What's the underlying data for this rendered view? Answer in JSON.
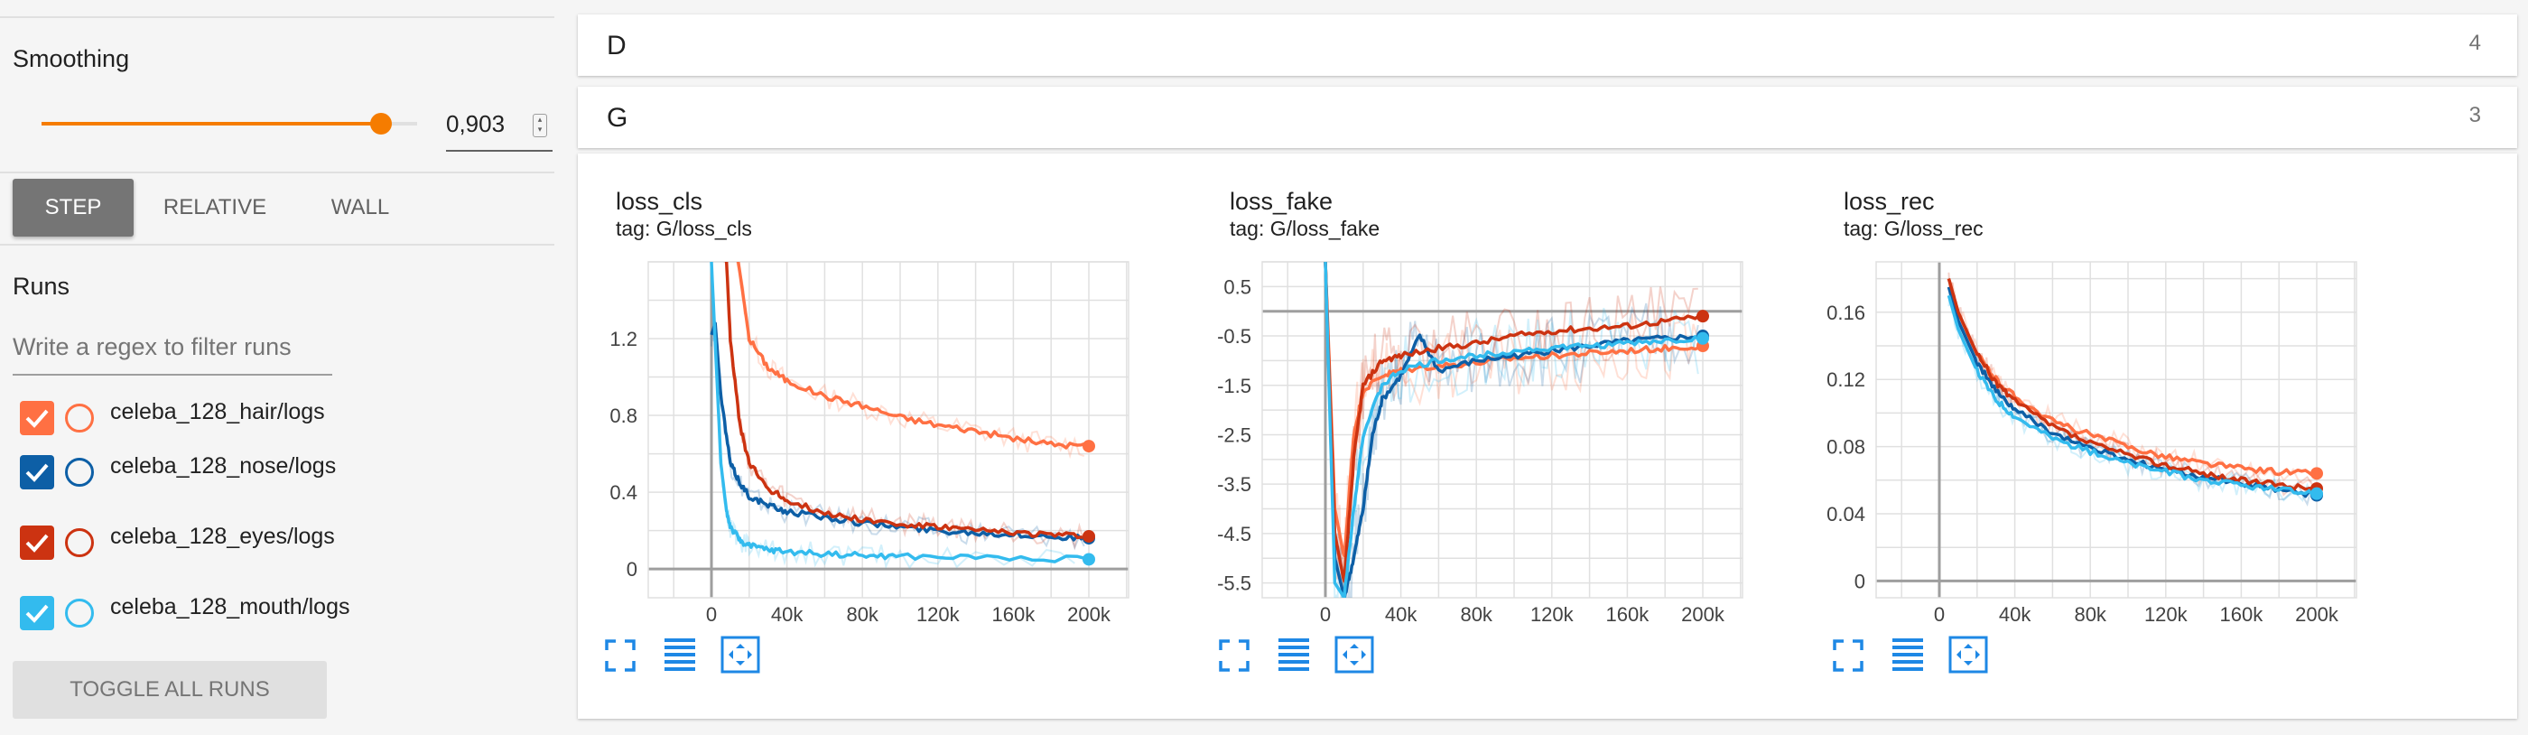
{
  "sidebar": {
    "smoothing_label": "Smoothing",
    "smoothing_value": "0,903",
    "smoothing_fraction": 0.903,
    "xaxis_options": [
      "STEP",
      "RELATIVE",
      "WALL"
    ],
    "xaxis_selected": "STEP",
    "runs_label": "Runs",
    "regex_placeholder": "Write a regex to filter runs",
    "toggle_label": "TOGGLE ALL RUNS",
    "runs": [
      {
        "name": "celeba_128_hair/logs",
        "color": "#ff7043",
        "checked": true
      },
      {
        "name": "celeba_128_nose/logs",
        "color": "#0d5fa6",
        "checked": true
      },
      {
        "name": "celeba_128_eyes/logs",
        "color": "#cc3311",
        "checked": true
      },
      {
        "name": "celeba_128_mouth/logs",
        "color": "#33bbee",
        "checked": true
      }
    ]
  },
  "groups": [
    {
      "name": "D",
      "count": "4"
    },
    {
      "name": "G",
      "count": "3"
    }
  ],
  "icons": [
    "fullscreen-icon",
    "data-list-icon",
    "fit-domain-icon",
    "check-icon",
    "spinner-icon"
  ],
  "chart_data": [
    {
      "type": "line",
      "title": "loss_cls",
      "subtitle": "tag: G/loss_cls",
      "xlim": [
        0,
        200000
      ],
      "ylim": [
        -0.15,
        1.6
      ],
      "xticks": [
        0,
        40000,
        80000,
        120000,
        160000,
        200000
      ],
      "xtick_labels": [
        "0",
        "40k",
        "80k",
        "120k",
        "160k",
        "200k"
      ],
      "yticks": [
        0,
        0.4,
        0.8,
        1.2
      ],
      "ytick_labels": [
        "0",
        "0.4",
        "0.8",
        "1.2"
      ],
      "grid": true,
      "series": [
        {
          "run": "celeba_128_hair/logs",
          "color": "#ff7043",
          "x": [
            0,
            15000,
            20000,
            30000,
            40000,
            60000,
            80000,
            100000,
            120000,
            140000,
            160000,
            180000,
            200000
          ],
          "y": [
            2.5,
            1.55,
            1.2,
            1.05,
            0.98,
            0.9,
            0.85,
            0.79,
            0.75,
            0.72,
            0.68,
            0.65,
            0.64
          ]
        },
        {
          "run": "celeba_128_nose/logs",
          "color": "#0d5fa6",
          "x": [
            0,
            2000,
            5000,
            10000,
            15000,
            20000,
            30000,
            40000,
            60000,
            80000,
            100000,
            120000,
            140000,
            160000,
            180000,
            200000
          ],
          "y": [
            1.22,
            1.28,
            0.9,
            0.55,
            0.45,
            0.38,
            0.33,
            0.3,
            0.27,
            0.24,
            0.22,
            0.2,
            0.19,
            0.18,
            0.17,
            0.16
          ]
        },
        {
          "run": "celeba_128_eyes/logs",
          "color": "#cc3311",
          "x": [
            0,
            8000,
            10000,
            15000,
            20000,
            30000,
            40000,
            60000,
            80000,
            100000,
            120000,
            140000,
            160000,
            180000,
            200000
          ],
          "y": [
            2.0,
            1.6,
            1.2,
            0.75,
            0.55,
            0.42,
            0.36,
            0.29,
            0.26,
            0.23,
            0.22,
            0.2,
            0.19,
            0.18,
            0.17
          ]
        },
        {
          "run": "celeba_128_mouth/logs",
          "color": "#33bbee",
          "x": [
            0,
            5000,
            8000,
            10000,
            15000,
            20000,
            30000,
            40000,
            60000,
            80000,
            100000,
            140000,
            200000
          ],
          "y": [
            1.6,
            0.55,
            0.3,
            0.22,
            0.15,
            0.12,
            0.1,
            0.09,
            0.08,
            0.07,
            0.065,
            0.06,
            0.05
          ]
        }
      ]
    },
    {
      "type": "line",
      "title": "loss_fake",
      "subtitle": "tag: G/loss_fake",
      "xlim": [
        0,
        200000
      ],
      "ylim": [
        -5.8,
        1.0
      ],
      "xticks": [
        0,
        40000,
        80000,
        120000,
        160000,
        200000
      ],
      "xtick_labels": [
        "0",
        "40k",
        "80k",
        "120k",
        "160k",
        "200k"
      ],
      "yticks": [
        0.5,
        -0.5,
        -1.5,
        -2.5,
        -3.5,
        -4.5,
        -5.5
      ],
      "ytick_labels": [
        "0.5",
        "-0.5",
        "-1.5",
        "-2.5",
        "-3.5",
        "-4.5",
        "-5.5"
      ],
      "grid": true,
      "series": [
        {
          "run": "celeba_128_hair/logs",
          "color": "#ff7043",
          "x": [
            0,
            5000,
            10000,
            15000,
            20000,
            30000,
            40000,
            60000,
            80000,
            100000,
            120000,
            140000,
            160000,
            180000,
            200000
          ],
          "y": [
            1.0,
            -4.0,
            -5.0,
            -2.5,
            -1.6,
            -1.3,
            -1.2,
            -1.1,
            -1.05,
            -0.95,
            -0.9,
            -0.85,
            -0.8,
            -0.75,
            -0.7
          ]
        },
        {
          "run": "celeba_128_nose/logs",
          "color": "#0d5fa6",
          "x": [
            0,
            5000,
            10000,
            15000,
            20000,
            25000,
            30000,
            40000,
            50000,
            60000,
            80000,
            100000,
            120000,
            140000,
            160000,
            180000,
            200000
          ],
          "y": [
            1.0,
            -5.0,
            -5.8,
            -5.0,
            -4.0,
            -2.5,
            -1.8,
            -1.3,
            -0.5,
            -1.2,
            -1.0,
            -0.9,
            -0.8,
            -0.7,
            -0.6,
            -0.55,
            -0.5
          ]
        },
        {
          "run": "celeba_128_eyes/logs",
          "color": "#cc3311",
          "x": [
            0,
            5000,
            10000,
            15000,
            20000,
            30000,
            40000,
            60000,
            80000,
            100000,
            120000,
            140000,
            160000,
            180000,
            200000
          ],
          "y": [
            1.0,
            -4.5,
            -5.5,
            -3.0,
            -1.5,
            -1.0,
            -0.9,
            -0.75,
            -0.65,
            -0.5,
            -0.4,
            -0.35,
            -0.3,
            -0.2,
            -0.1
          ]
        },
        {
          "run": "celeba_128_mouth/logs",
          "color": "#33bbee",
          "x": [
            0,
            5000,
            10000,
            15000,
            20000,
            30000,
            40000,
            60000,
            80000,
            100000,
            120000,
            140000,
            160000,
            180000,
            200000
          ],
          "y": [
            1.0,
            -5.5,
            -5.8,
            -4.0,
            -2.5,
            -1.5,
            -1.2,
            -1.0,
            -0.9,
            -0.8,
            -0.75,
            -0.7,
            -0.65,
            -0.6,
            -0.55
          ]
        }
      ]
    },
    {
      "type": "line",
      "title": "loss_rec",
      "subtitle": "tag: G/loss_rec",
      "xlim": [
        0,
        200000
      ],
      "ylim": [
        -0.01,
        0.19
      ],
      "xticks": [
        0,
        40000,
        80000,
        120000,
        160000,
        200000
      ],
      "xtick_labels": [
        "0",
        "40k",
        "80k",
        "120k",
        "160k",
        "200k"
      ],
      "yticks": [
        0,
        0.04,
        0.08,
        0.12,
        0.16
      ],
      "ytick_labels": [
        "0",
        "0.04",
        "0.08",
        "0.12",
        "0.16"
      ],
      "grid": true,
      "series": [
        {
          "run": "celeba_128_hair/logs",
          "color": "#ff7043",
          "x": [
            5000,
            10000,
            20000,
            30000,
            40000,
            60000,
            80000,
            100000,
            120000,
            140000,
            160000,
            180000,
            200000
          ],
          "y": [
            0.18,
            0.16,
            0.135,
            0.12,
            0.11,
            0.095,
            0.087,
            0.08,
            0.074,
            0.07,
            0.067,
            0.065,
            0.064
          ]
        },
        {
          "run": "celeba_128_nose/logs",
          "color": "#0d5fa6",
          "x": [
            5000,
            10000,
            20000,
            30000,
            40000,
            60000,
            80000,
            100000,
            120000,
            140000,
            160000,
            180000,
            200000
          ],
          "y": [
            0.175,
            0.155,
            0.13,
            0.113,
            0.102,
            0.088,
            0.079,
            0.072,
            0.066,
            0.062,
            0.058,
            0.054,
            0.051
          ]
        },
        {
          "run": "celeba_128_eyes/logs",
          "color": "#cc3311",
          "x": [
            5000,
            10000,
            20000,
            30000,
            40000,
            60000,
            80000,
            100000,
            120000,
            140000,
            160000,
            180000,
            200000
          ],
          "y": [
            0.18,
            0.16,
            0.135,
            0.118,
            0.107,
            0.092,
            0.082,
            0.075,
            0.069,
            0.064,
            0.06,
            0.057,
            0.055
          ]
        },
        {
          "run": "celeba_128_mouth/logs",
          "color": "#33bbee",
          "x": [
            5000,
            10000,
            20000,
            30000,
            40000,
            60000,
            80000,
            100000,
            120000,
            140000,
            160000,
            180000,
            200000
          ],
          "y": [
            0.17,
            0.15,
            0.125,
            0.108,
            0.098,
            0.085,
            0.077,
            0.07,
            0.065,
            0.06,
            0.057,
            0.054,
            0.052
          ]
        }
      ]
    }
  ]
}
